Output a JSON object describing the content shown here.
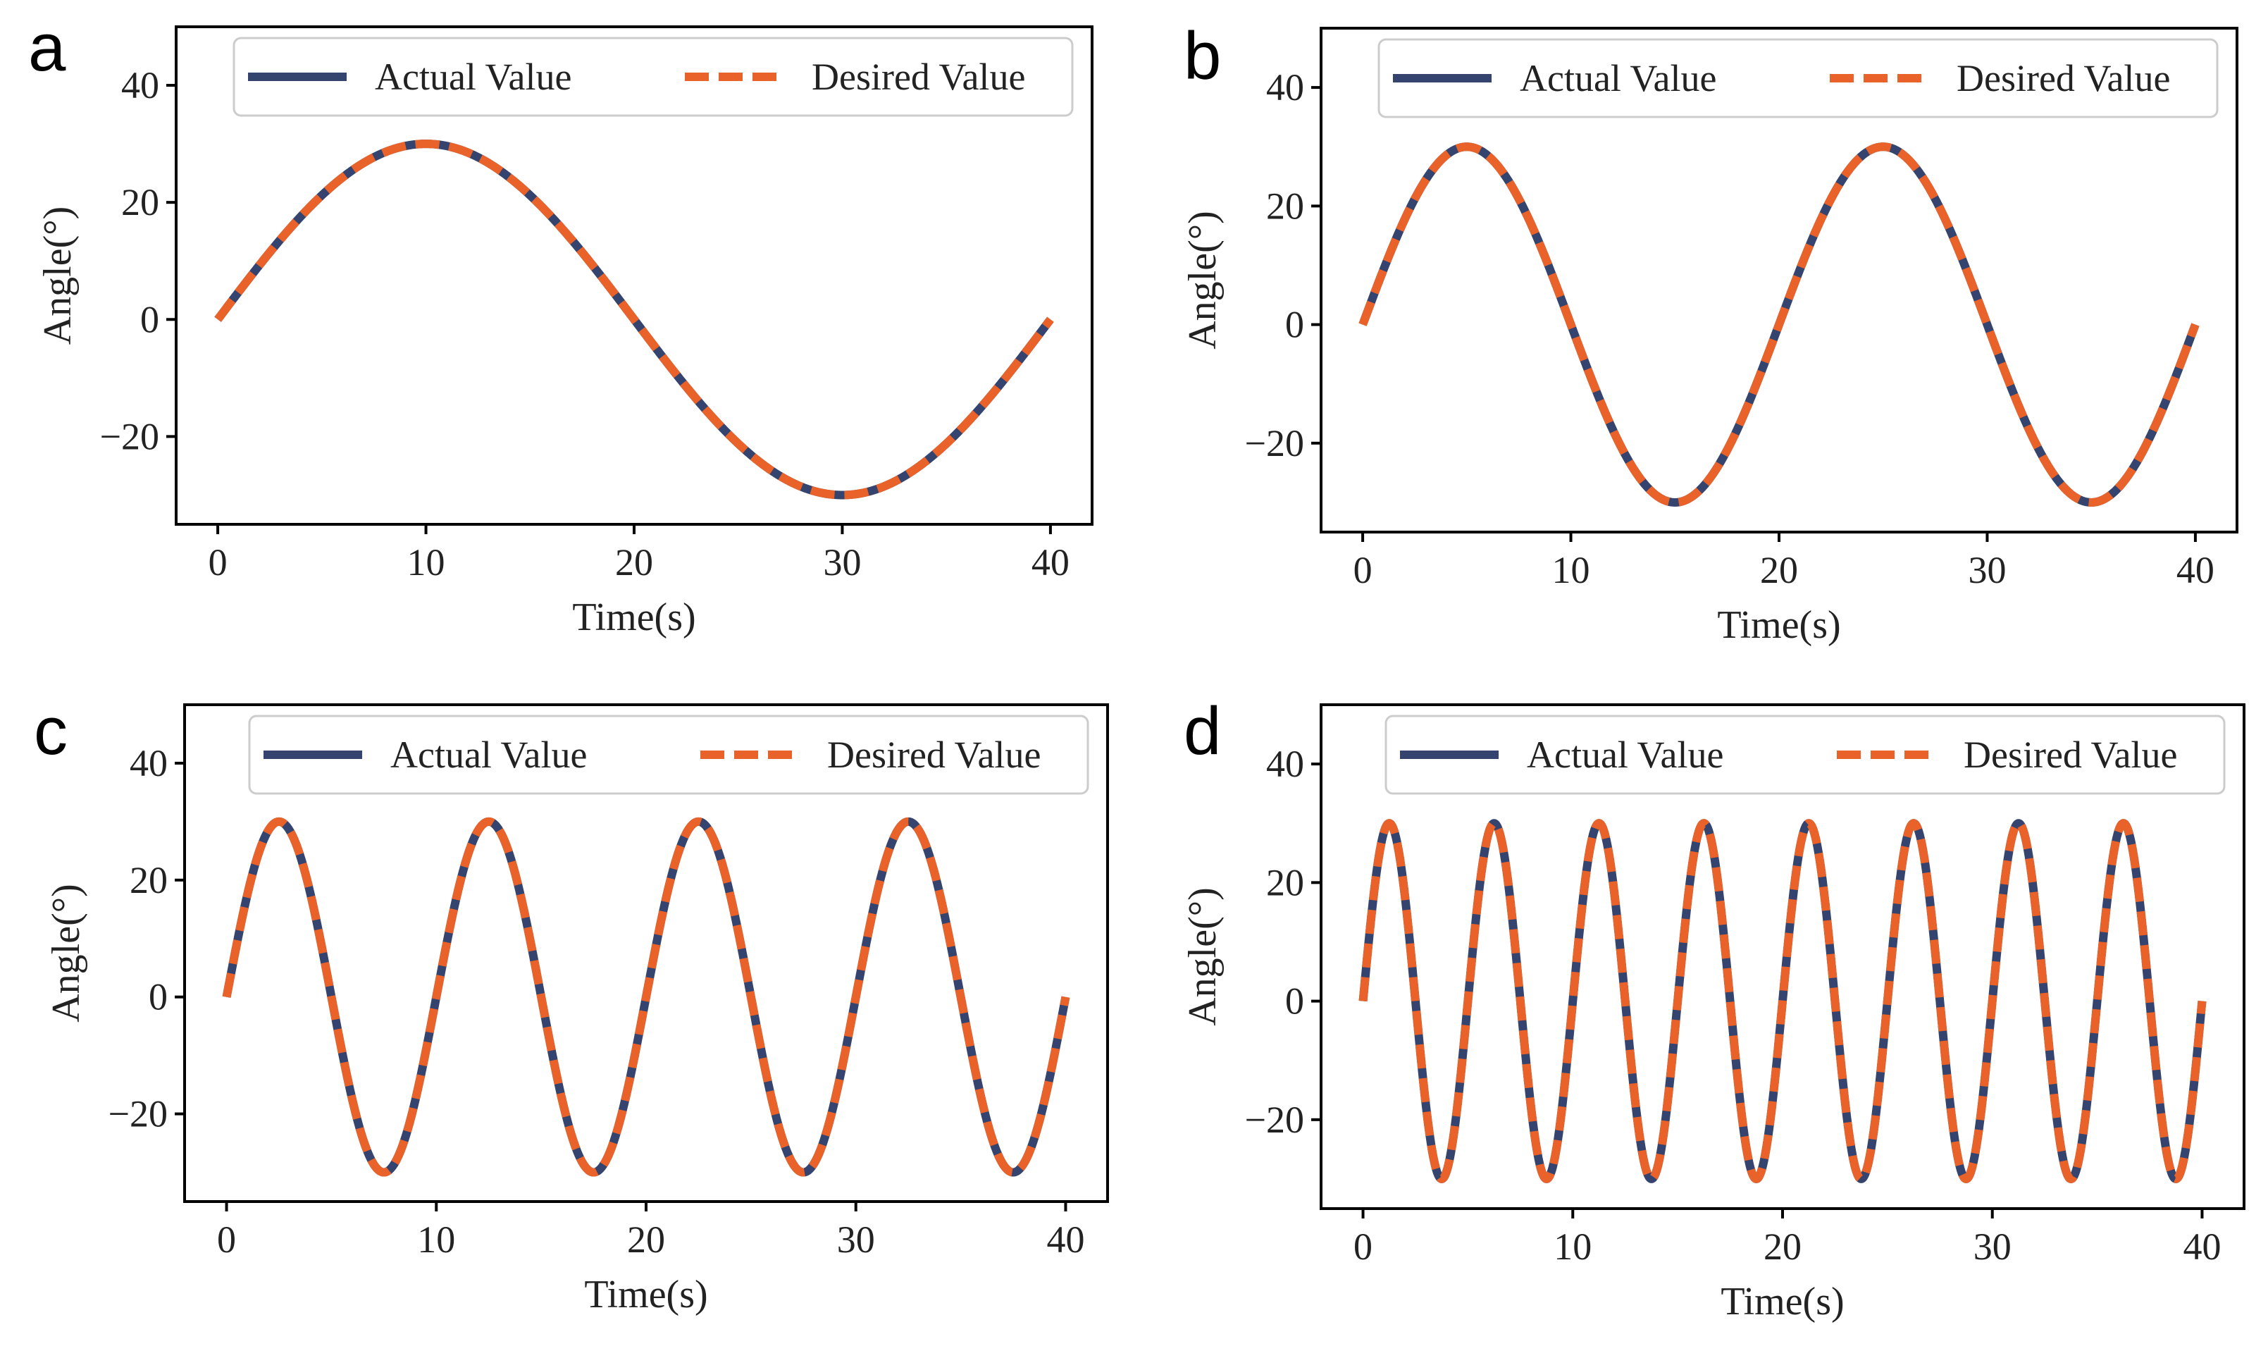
{
  "chart_data": [
    {
      "panel": "a",
      "type": "line",
      "xlabel": "Time(s)",
      "ylabel": "Angle(°)",
      "xlim": [
        -2,
        42
      ],
      "ylim": [
        -35,
        50
      ],
      "xticks": [
        0,
        10,
        20,
        30,
        40
      ],
      "yticks": [
        -20,
        0,
        20,
        40
      ],
      "legend_position": "top-right",
      "series": [
        {
          "name": "Actual Value",
          "color": "#34446e",
          "style": "solid",
          "amplitude": 30,
          "period": 40,
          "t_start": 0,
          "t_end": 40
        },
        {
          "name": "Desired Value",
          "color": "#e8622a",
          "style": "dashed",
          "amplitude": 30,
          "period": 40,
          "t_start": 0,
          "t_end": 40
        }
      ]
    },
    {
      "panel": "b",
      "type": "line",
      "xlabel": "Time(s)",
      "ylabel": "Angle(°)",
      "xlim": [
        -2,
        42
      ],
      "ylim": [
        -35,
        50
      ],
      "xticks": [
        0,
        10,
        20,
        30,
        40
      ],
      "yticks": [
        -20,
        0,
        20,
        40
      ],
      "legend_position": "top-right",
      "series": [
        {
          "name": "Actual Value",
          "color": "#34446e",
          "style": "solid",
          "amplitude": 30,
          "period": 20,
          "t_start": 0,
          "t_end": 40
        },
        {
          "name": "Desired Value",
          "color": "#e8622a",
          "style": "dashed",
          "amplitude": 30,
          "period": 20,
          "t_start": 0,
          "t_end": 40
        }
      ]
    },
    {
      "panel": "c",
      "type": "line",
      "xlabel": "Time(s)",
      "ylabel": "Angle(°)",
      "xlim": [
        -2,
        42
      ],
      "ylim": [
        -35,
        50
      ],
      "xticks": [
        0,
        10,
        20,
        30,
        40
      ],
      "yticks": [
        -20,
        0,
        20,
        40
      ],
      "legend_position": "top-right",
      "series": [
        {
          "name": "Actual Value",
          "color": "#34446e",
          "style": "solid",
          "amplitude": 30,
          "period": 10,
          "t_start": 0,
          "t_end": 40
        },
        {
          "name": "Desired Value",
          "color": "#e8622a",
          "style": "dashed",
          "amplitude": 30,
          "period": 10,
          "t_start": 0,
          "t_end": 40
        }
      ]
    },
    {
      "panel": "d",
      "type": "line",
      "xlabel": "Time(s)",
      "ylabel": "Angle(°)",
      "xlim": [
        -2,
        42
      ],
      "ylim": [
        -35,
        50
      ],
      "xticks": [
        0,
        10,
        20,
        30,
        40
      ],
      "yticks": [
        -20,
        0,
        20,
        40
      ],
      "legend_position": "top-right",
      "series": [
        {
          "name": "Actual Value",
          "color": "#34446e",
          "style": "solid",
          "amplitude": 30,
          "period": 5,
          "t_start": 0,
          "t_end": 40
        },
        {
          "name": "Desired Value",
          "color": "#e8622a",
          "style": "dashed",
          "amplitude": 30,
          "period": 5,
          "t_start": 0,
          "t_end": 40
        }
      ]
    }
  ]
}
